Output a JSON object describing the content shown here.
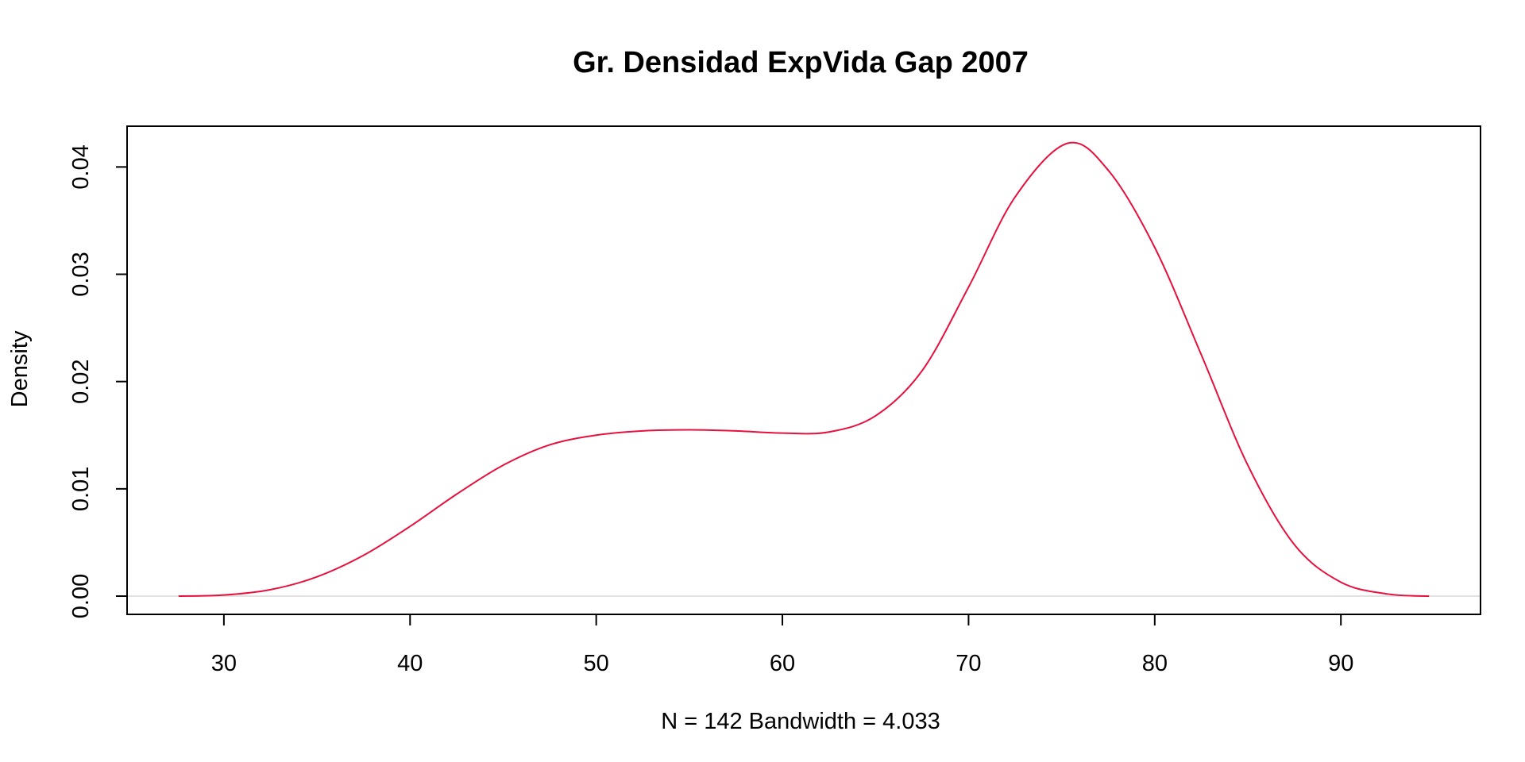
{
  "chart_data": {
    "type": "line",
    "title": "Gr. Densidad ExpVida Gap 2007",
    "xlabel": "N = 142   Bandwidth = 4.033",
    "ylabel": "Density",
    "xlim": [
      24.8,
      97.5
    ],
    "ylim": [
      -0.0017,
      0.0438
    ],
    "x_ticks": [
      30,
      40,
      50,
      60,
      70,
      80,
      90
    ],
    "x_tick_labels": [
      "30",
      "40",
      "50",
      "60",
      "70",
      "80",
      "90"
    ],
    "y_ticks": [
      0.0,
      0.01,
      0.02,
      0.03,
      0.04
    ],
    "y_tick_labels": [
      "0.00",
      "0.01",
      "0.02",
      "0.03",
      "0.04"
    ],
    "zero_line": true,
    "grid": false,
    "series": [
      {
        "color": "#e8103e",
        "x": [
          27.6,
          30,
          32.5,
          35,
          37.5,
          40,
          42.5,
          45,
          47.5,
          50,
          52.5,
          55,
          57.5,
          60,
          62.5,
          65,
          67.5,
          70,
          72.5,
          75.3,
          77.5,
          80,
          82.5,
          85,
          87.5,
          90,
          92.5,
          94.7
        ],
        "y": [
          0.0,
          0.0001,
          0.0006,
          0.0018,
          0.0038,
          0.0065,
          0.0095,
          0.0122,
          0.0141,
          0.015,
          0.0154,
          0.0155,
          0.0154,
          0.0152,
          0.0153,
          0.0168,
          0.021,
          0.0288,
          0.0372,
          0.0422,
          0.0397,
          0.0325,
          0.0225,
          0.0122,
          0.0048,
          0.0013,
          0.0002,
          0.0
        ]
      }
    ]
  },
  "colors": {
    "line": "#e8103e",
    "zero_line": "#d9d9d9",
    "axis": "#000000"
  }
}
